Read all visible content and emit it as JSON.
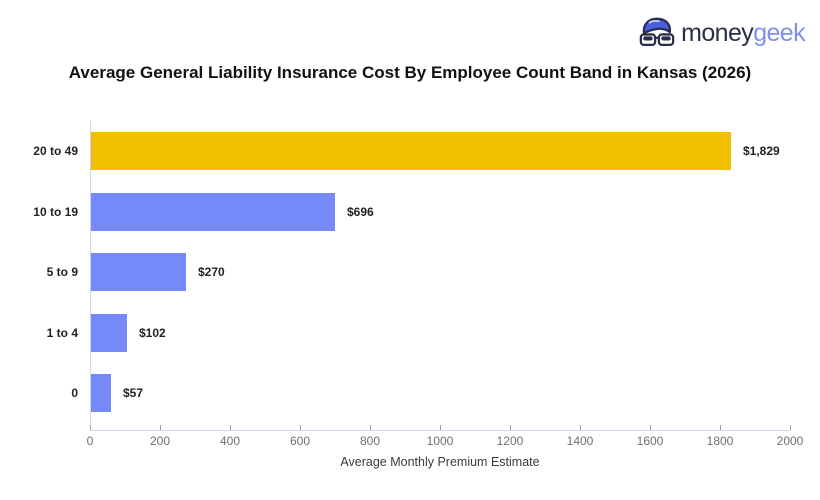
{
  "logo": {
    "brand_primary": "money",
    "brand_secondary": "geek",
    "icon": "geek-face-icon",
    "icon_hair_color": "#4a5fe0",
    "icon_outline_color": "#2b2f4e"
  },
  "title": "Average General Liability Insurance Cost By Employee Count Band in Kansas (2026)",
  "chart_data": {
    "type": "bar",
    "orientation": "horizontal",
    "title": "Average General Liability Insurance Cost By Employee Count Band in Kansas (2026)",
    "categories": [
      "20 to 49",
      "10 to 19",
      "5 to 9",
      "1 to 4",
      "0"
    ],
    "values": [
      1829,
      696,
      270,
      102,
      57
    ],
    "value_labels": [
      "$1,829",
      "$696",
      "$270",
      "$102",
      "$57"
    ],
    "bar_colors": [
      "#f2be00",
      "#7689f8",
      "#7689f8",
      "#7689f8",
      "#7689f8"
    ],
    "xlabel": "Average Monthly Premium Estimate",
    "ylabel": "",
    "xlim": [
      0,
      2000
    ],
    "x_ticks": [
      0,
      200,
      400,
      600,
      800,
      1000,
      1200,
      1400,
      1600,
      1800,
      2000
    ],
    "grid": false,
    "legend": "none",
    "axis_line_color": "#ccd6f3",
    "tick_color": "#9aa0a6"
  }
}
